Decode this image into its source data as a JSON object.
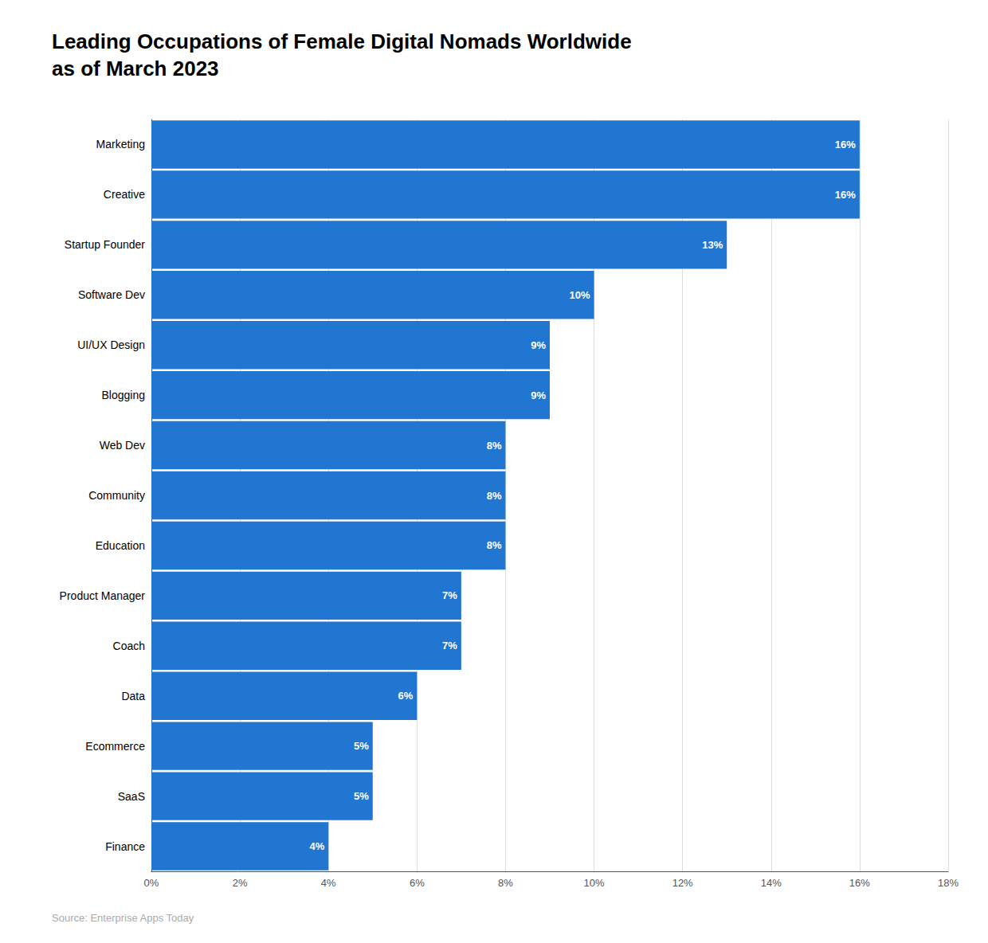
{
  "chart_data": {
    "type": "bar",
    "title": "Leading Occupations of Female Digital Nomads Worldwide\nas of March 2023",
    "source": "Source: Enterprise Apps Today",
    "orientation": "horizontal",
    "categories": [
      "Finance",
      "SaaS",
      "Ecommerce",
      "Data",
      "Coach",
      "Product Manager",
      "Education",
      "Community",
      "Web Dev",
      "Blogging",
      "UI/UX Design",
      "Software Dev",
      "Startup Founder",
      "Creative",
      "Marketing"
    ],
    "values": [
      4,
      5,
      5,
      6,
      7,
      7,
      8,
      8,
      8,
      9,
      9,
      10,
      13,
      16,
      16
    ],
    "value_labels": [
      "4%",
      "5%",
      "5%",
      "6%",
      "7%",
      "7%",
      "8%",
      "8%",
      "8%",
      "9%",
      "9%",
      "10%",
      "13%",
      "16%",
      "16%"
    ],
    "data_labels": true,
    "color": "#2176d2",
    "xlim": [
      0,
      18
    ],
    "xticks": [
      {
        "value": 0,
        "label": "0%"
      },
      {
        "value": 2,
        "label": "2%"
      },
      {
        "value": 4,
        "label": "4%"
      },
      {
        "value": 6,
        "label": "6%"
      },
      {
        "value": 8,
        "label": "8%"
      },
      {
        "value": 10,
        "label": "10%"
      },
      {
        "value": 12,
        "label": "12%"
      },
      {
        "value": 14,
        "label": "14%"
      },
      {
        "value": 16,
        "label": "16%"
      },
      {
        "value": 18,
        "label": "18%"
      }
    ],
    "grid": true
  }
}
